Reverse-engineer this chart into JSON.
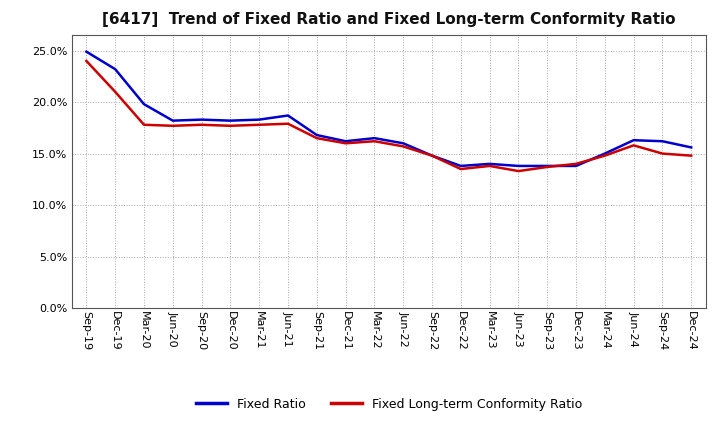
{
  "title": "[6417]  Trend of Fixed Ratio and Fixed Long-term Conformity Ratio",
  "x_labels": [
    "Sep-19",
    "Dec-19",
    "Mar-20",
    "Jun-20",
    "Sep-20",
    "Dec-20",
    "Mar-21",
    "Jun-21",
    "Sep-21",
    "Dec-21",
    "Mar-22",
    "Jun-22",
    "Sep-22",
    "Dec-22",
    "Mar-23",
    "Jun-23",
    "Sep-23",
    "Dec-23",
    "Mar-24",
    "Jun-24",
    "Sep-24",
    "Dec-24"
  ],
  "fixed_ratio": [
    0.249,
    0.232,
    0.198,
    0.182,
    0.183,
    0.182,
    0.183,
    0.187,
    0.168,
    0.162,
    0.165,
    0.16,
    0.148,
    0.138,
    0.14,
    0.138,
    0.138,
    0.138,
    0.15,
    0.163,
    0.162,
    0.156
  ],
  "fixed_lt_ratio": [
    0.24,
    0.21,
    0.178,
    0.177,
    0.178,
    0.177,
    0.178,
    0.179,
    0.165,
    0.16,
    0.162,
    0.157,
    0.148,
    0.135,
    0.138,
    0.133,
    0.137,
    0.14,
    0.148,
    0.158,
    0.15,
    0.148
  ],
  "fixed_ratio_color": "#0000cc",
  "fixed_lt_ratio_color": "#cc0000",
  "background_color": "#ffffff",
  "plot_bg_color": "#ffffff",
  "grid_color": "#aaaaaa",
  "ylim": [
    0.0,
    0.265
  ],
  "yticks": [
    0.0,
    0.05,
    0.1,
    0.15,
    0.2,
    0.25
  ],
  "legend_fixed_ratio": "Fixed Ratio",
  "legend_fixed_lt_ratio": "Fixed Long-term Conformity Ratio",
  "line_width": 1.8
}
